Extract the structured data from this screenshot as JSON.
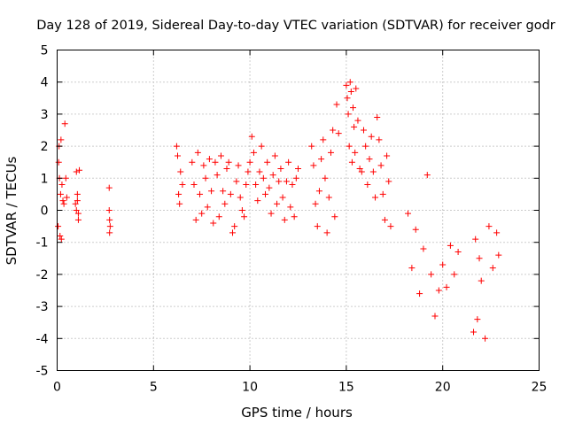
{
  "chart_data": {
    "type": "scatter",
    "title": "Day 128 of 2019, Sidereal Day-to-day VTEC variation (SDTVAR) for receiver godr",
    "xlabel": "GPS time / hours",
    "ylabel": "SDTVAR / TECUs",
    "xlim": [
      0,
      25
    ],
    "ylim": [
      -5,
      5
    ],
    "xticks": [
      0,
      5,
      10,
      15,
      20,
      25
    ],
    "xtick_labels": [
      "0",
      "5",
      "10",
      "15",
      "20",
      "25"
    ],
    "yticks": [
      -5,
      -4,
      -3,
      -2,
      -1,
      0,
      1,
      2,
      3,
      4,
      5
    ],
    "ytick_labels": [
      "-5",
      "-4",
      "-3",
      "-2",
      "-1",
      "0",
      "1",
      "2",
      "3",
      "4",
      "5"
    ],
    "grid": true,
    "marker": "+",
    "color": "#ff0000",
    "series": [
      {
        "name": "SDTVAR",
        "x": [
          0.05,
          0.08,
          0.1,
          0.12,
          0.15,
          0.18,
          0.2,
          0.22,
          0.25,
          0.3,
          0.35,
          0.4,
          0.45,
          0.5,
          0.95,
          1.0,
          1.05,
          1.1,
          1.15,
          1.0,
          1.05,
          1.1,
          2.7,
          2.7,
          2.72,
          2.75,
          2.72,
          6.2,
          6.25,
          6.3,
          6.4,
          6.35,
          6.5,
          7.0,
          7.1,
          7.2,
          7.3,
          7.4,
          7.5,
          7.6,
          7.7,
          7.8,
          7.9,
          8.0,
          8.1,
          8.2,
          8.3,
          8.4,
          8.5,
          8.6,
          8.7,
          8.8,
          8.9,
          9.0,
          9.1,
          9.2,
          9.3,
          9.4,
          9.5,
          9.6,
          9.7,
          9.8,
          9.9,
          10.0,
          10.1,
          10.2,
          10.3,
          10.4,
          10.5,
          10.6,
          10.7,
          10.8,
          10.9,
          11.0,
          11.1,
          11.2,
          11.3,
          11.4,
          11.5,
          11.6,
          11.7,
          11.8,
          11.9,
          12.0,
          12.1,
          12.2,
          12.3,
          12.4,
          12.5,
          13.2,
          13.3,
          13.4,
          13.5,
          13.6,
          13.7,
          13.8,
          13.9,
          14.0,
          14.1,
          14.2,
          14.3,
          14.4,
          14.5,
          14.6,
          15.0,
          15.05,
          15.1,
          15.15,
          15.2,
          15.25,
          15.3,
          15.35,
          15.4,
          15.45,
          15.5,
          15.6,
          15.7,
          15.8,
          15.9,
          16.0,
          16.1,
          16.2,
          16.3,
          16.4,
          16.5,
          16.6,
          16.7,
          16.8,
          16.9,
          17.0,
          17.1,
          17.2,
          17.3,
          18.2,
          18.4,
          18.6,
          18.8,
          19.0,
          19.2,
          19.4,
          19.6,
          19.8,
          20.0,
          20.2,
          20.4,
          20.6,
          20.8,
          21.6,
          21.7,
          21.8,
          21.9,
          22.0,
          22.2,
          22.4,
          22.6,
          22.8,
          22.9
        ],
        "y": [
          -0.5,
          1.5,
          2.0,
          1.0,
          -0.8,
          0.5,
          2.2,
          -0.9,
          0.8,
          0.3,
          0.2,
          2.7,
          1.0,
          0.4,
          0.2,
          1.2,
          0.5,
          -0.1,
          1.25,
          0.0,
          0.3,
          -0.3,
          0.7,
          0.0,
          -0.3,
          -0.5,
          -0.7,
          2.0,
          1.7,
          0.5,
          1.2,
          0.2,
          0.8,
          1.5,
          0.8,
          -0.3,
          1.8,
          0.5,
          -0.1,
          1.4,
          1.0,
          0.1,
          1.6,
          0.6,
          -0.4,
          1.5,
          1.1,
          -0.2,
          1.7,
          0.6,
          0.2,
          1.3,
          1.5,
          0.5,
          -0.7,
          -0.5,
          0.9,
          1.4,
          0.4,
          0.0,
          -0.2,
          0.8,
          1.2,
          1.5,
          2.3,
          1.8,
          0.8,
          0.3,
          1.2,
          2.0,
          1.0,
          0.5,
          1.5,
          0.7,
          -0.1,
          1.1,
          1.7,
          0.2,
          0.9,
          1.3,
          0.4,
          -0.3,
          0.9,
          1.5,
          0.1,
          0.8,
          -0.2,
          1.0,
          1.3,
          2.0,
          1.4,
          0.2,
          -0.5,
          0.6,
          1.6,
          2.2,
          1.0,
          -0.7,
          0.4,
          1.8,
          2.5,
          -0.2,
          3.3,
          2.4,
          3.9,
          3.5,
          3.0,
          2.0,
          4.0,
          3.7,
          1.5,
          3.2,
          2.6,
          1.8,
          3.8,
          2.8,
          1.3,
          1.2,
          2.5,
          2.0,
          0.8,
          1.6,
          2.3,
          1.2,
          0.4,
          2.9,
          2.2,
          1.4,
          0.5,
          -0.3,
          1.7,
          0.9,
          -0.5,
          -0.1,
          -1.8,
          -0.6,
          -2.6,
          -1.2,
          1.1,
          -2.0,
          -3.3,
          -2.5,
          -1.7,
          -2.4,
          -1.1,
          -2.0,
          -1.3,
          -3.8,
          -0.9,
          -3.4,
          -1.5,
          -2.2,
          -4.0,
          -0.5,
          -1.8,
          -0.7,
          -1.4
        ]
      }
    ]
  }
}
